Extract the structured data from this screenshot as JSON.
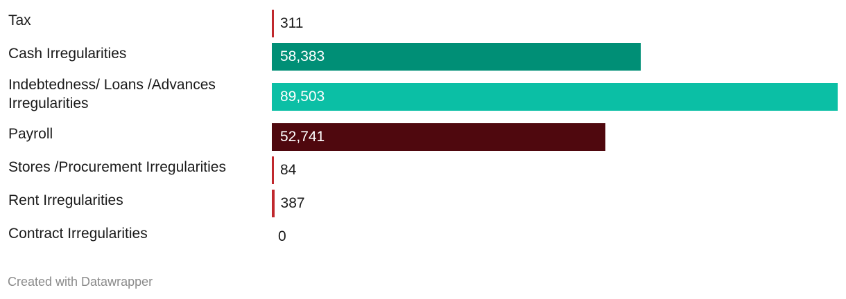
{
  "chart_data": {
    "type": "bar",
    "orientation": "horizontal",
    "categories": [
      "Tax",
      "Cash Irregularities",
      "Indebtedness/ Loans /Advances Irregularities",
      "Payroll",
      "Stores /Procurement Irregularities",
      "Rent Irregularities",
      "Contract Irregularities"
    ],
    "values": [
      311,
      58383,
      89503,
      52741,
      84,
      387,
      0
    ],
    "value_labels": [
      "311",
      "58,383",
      "89,503",
      "52,741",
      "84",
      "387",
      "0"
    ],
    "colors": [
      "#c0282d",
      "#008f76",
      "#0bbfa5",
      "#4f080e",
      "#c0282d",
      "#c0282d",
      "#c0282d"
    ],
    "xlim": [
      0,
      89503
    ],
    "grid": false,
    "legend": "none"
  },
  "footer": {
    "credit": "Created with Datawrapper"
  }
}
